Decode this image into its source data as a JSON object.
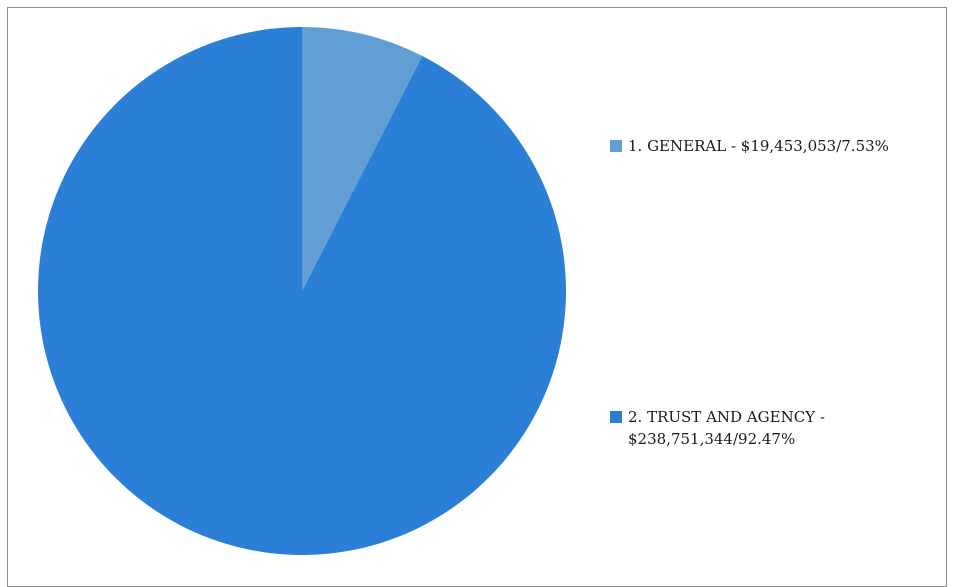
{
  "chart_data": {
    "type": "pie",
    "categories": [
      "1. GENERAL - $19,453,053/7.53%",
      "2. TRUST AND AGENCY - $238,751,344/92.47%"
    ],
    "values": [
      19453053,
      238751344
    ],
    "percentages": [
      7.53,
      92.47
    ],
    "colors": [
      "#609ed4",
      "#2b7fd7"
    ],
    "legend": "right"
  }
}
